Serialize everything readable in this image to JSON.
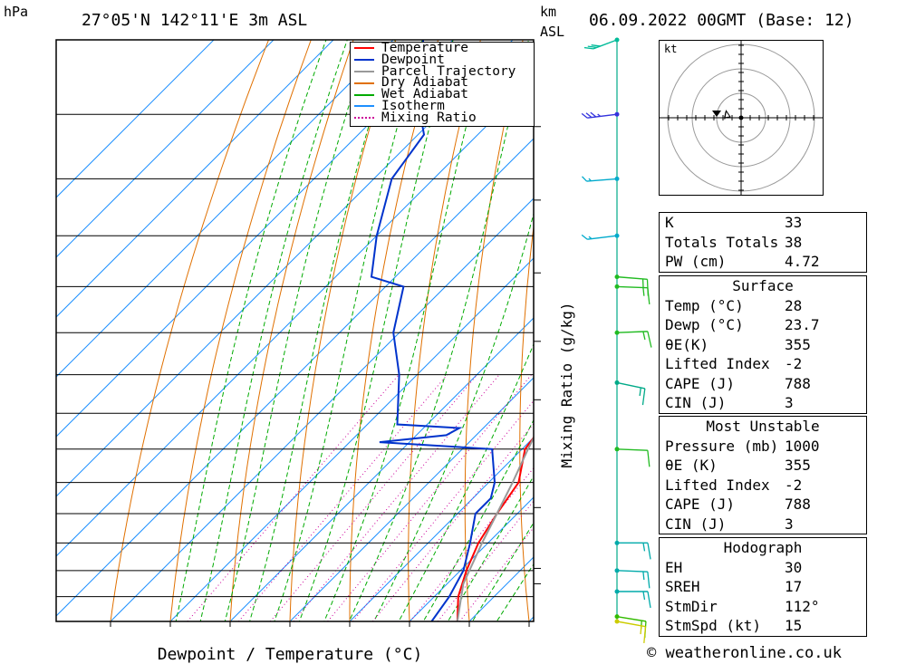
{
  "header": {
    "pressure_unit": "hPa",
    "location": "27°05'N  142°11'E  3m  ASL",
    "km_label": "km",
    "asl_label": "ASL",
    "datetime": "06.09.2022  00GMT  (Base: 12)"
  },
  "footer": {
    "copyright": "© weatheronline.co.uk"
  },
  "legend": {
    "items": [
      {
        "label": "Temperature",
        "color": "#ff0000",
        "style": "solid"
      },
      {
        "label": "Dewpoint",
        "color": "#0033cc",
        "style": "solid"
      },
      {
        "label": "Parcel Trajectory",
        "color": "#999999",
        "style": "solid"
      },
      {
        "label": "Dry Adiabat",
        "color": "#e07000",
        "style": "solid"
      },
      {
        "label": "Wet Adiabat",
        "color": "#00aa00",
        "style": "solid"
      },
      {
        "label": "Isotherm",
        "color": "#1e90ff",
        "style": "solid"
      },
      {
        "label": "Mixing Ratio",
        "color": "#cc0099",
        "style": "dotted"
      }
    ]
  },
  "chart_data": {
    "type": "line",
    "subtype": "skew-T log-P diagram",
    "xlabel": "Dewpoint / Temperature (°C)",
    "ylabel": "hPa",
    "xlim": [
      -40,
      40
    ],
    "ylim": [
      1000,
      300
    ],
    "x_ticks": [
      -30,
      -20,
      -10,
      0,
      10,
      20,
      30,
      40
    ],
    "pressure_levels": [
      300,
      350,
      400,
      450,
      500,
      550,
      600,
      650,
      700,
      750,
      800,
      850,
      900,
      950,
      1000
    ],
    "km_ticks": [
      {
        "km": "8",
        "p": 359
      },
      {
        "km": "7",
        "p": 418
      },
      {
        "km": "6",
        "p": 486
      },
      {
        "km": "5",
        "p": 560
      },
      {
        "km": "4",
        "p": 632
      },
      {
        "km": "3",
        "p": 700
      },
      {
        "km": "2",
        "p": 790
      },
      {
        "km": "1",
        "p": 896
      },
      {
        "km": "LCL",
        "p": 925
      }
    ],
    "mixing_ratio_axis_label": "Mixing Ratio (g/kg)",
    "mixing_ratio_labels": [
      "1",
      "2",
      "3",
      "4",
      "6",
      "8",
      "10",
      "15",
      "20",
      "25"
    ],
    "mixing_ratio_values": [
      1,
      2,
      3,
      4,
      6,
      8,
      10,
      15,
      20,
      25
    ],
    "series": [
      {
        "name": "Temperature",
        "color": "#ff0000",
        "points": [
          [
            1000,
            28
          ],
          [
            950,
            24
          ],
          [
            900,
            21
          ],
          [
            850,
            18.4
          ],
          [
            800,
            16.6
          ],
          [
            750,
            15
          ],
          [
            700,
            10.5
          ],
          [
            650,
            9
          ],
          [
            600,
            5
          ],
          [
            550,
            1
          ],
          [
            500,
            -4
          ],
          [
            450,
            -9.5
          ],
          [
            400,
            -15
          ],
          [
            380,
            -19
          ],
          [
            350,
            -24.5
          ]
        ]
      },
      {
        "name": "Dewpoint",
        "color": "#0033cc",
        "points": [
          [
            1000,
            23.7
          ],
          [
            950,
            22.5
          ],
          [
            900,
            20.5
          ],
          [
            850,
            17
          ],
          [
            800,
            13
          ],
          [
            775,
            13
          ],
          [
            750,
            11
          ],
          [
            700,
            5
          ],
          [
            690,
            -15
          ],
          [
            680,
            -5
          ],
          [
            670,
            -4
          ],
          [
            665,
            -15
          ],
          [
            600,
            -23
          ],
          [
            550,
            -31
          ],
          [
            500,
            -37
          ],
          [
            490,
            -44
          ],
          [
            450,
            -50
          ],
          [
            400,
            -57
          ],
          [
            365,
            -59
          ],
          [
            350,
            -63
          ],
          [
            300,
            -75
          ]
        ]
      },
      {
        "name": "Parcel Trajectory",
        "color": "#999999",
        "points": [
          [
            1000,
            28
          ],
          [
            925,
            22.7
          ],
          [
            900,
            21.5
          ],
          [
            850,
            19
          ],
          [
            800,
            16.6
          ],
          [
            750,
            14
          ],
          [
            700,
            11
          ],
          [
            650,
            8
          ],
          [
            600,
            4.6
          ],
          [
            550,
            1
          ],
          [
            500,
            -3
          ],
          [
            450,
            -7
          ],
          [
            400,
            -12
          ],
          [
            370,
            -16
          ]
        ]
      }
    ]
  },
  "hodograph": {
    "unit_label": "kt",
    "ring_labels": [
      "15",
      "30",
      "45"
    ]
  },
  "wind_barbs": [
    {
      "p": 300,
      "dir_deg": 230,
      "speed_kt": 30,
      "color": "#00bb99"
    },
    {
      "p": 350,
      "dir_deg": 255,
      "speed_kt": 35,
      "color": "#3333dd"
    },
    {
      "p": 400,
      "dir_deg": 260,
      "speed_kt": 15,
      "color": "#00aacc"
    },
    {
      "p": 450,
      "dir_deg": 255,
      "speed_kt": 15,
      "color": "#00aacc"
    },
    {
      "p": 490,
      "dir_deg": 100,
      "speed_kt": 15,
      "color": "#22bb22"
    },
    {
      "p": 500,
      "dir_deg": 95,
      "speed_kt": 15,
      "color": "#22bb22"
    },
    {
      "p": 550,
      "dir_deg": 85,
      "speed_kt": 15,
      "color": "#22bb22"
    },
    {
      "p": 610,
      "dir_deg": 115,
      "speed_kt": 15,
      "color": "#00aa88"
    },
    {
      "p": 700,
      "dir_deg": 95,
      "speed_kt": 10,
      "color": "#22bb22"
    },
    {
      "p": 850,
      "dir_deg": 90,
      "speed_kt": 15,
      "color": "#00aaaa"
    },
    {
      "p": 900,
      "dir_deg": 95,
      "speed_kt": 15,
      "color": "#00aaaa"
    },
    {
      "p": 940,
      "dir_deg": 90,
      "speed_kt": 15,
      "color": "#00aaaa"
    },
    {
      "p": 990,
      "dir_deg": 110,
      "speed_kt": 15,
      "color": "#33bb00"
    },
    {
      "p": 1000,
      "dir_deg": 112,
      "speed_kt": 15,
      "color": "#cccc00"
    }
  ],
  "indices": {
    "top": [
      {
        "label": "K",
        "value": "33"
      },
      {
        "label": "Totals Totals",
        "value": "38"
      },
      {
        "label": "PW (cm)",
        "value": "4.72"
      }
    ],
    "surface": {
      "title": "Surface",
      "rows": [
        {
          "label": "Temp (°C)",
          "value": "28"
        },
        {
          "label": "Dewp (°C)",
          "value": "23.7"
        },
        {
          "label": "θE(K)",
          "value": "355"
        },
        {
          "label": "Lifted Index",
          "value": "-2"
        },
        {
          "label": "CAPE (J)",
          "value": "788"
        },
        {
          "label": "CIN (J)",
          "value": "3"
        }
      ]
    },
    "most_unstable": {
      "title": "Most Unstable",
      "rows": [
        {
          "label": "Pressure (mb)",
          "value": "1000"
        },
        {
          "label": "θE (K)",
          "value": "355"
        },
        {
          "label": "Lifted Index",
          "value": "-2"
        },
        {
          "label": "CAPE (J)",
          "value": "788"
        },
        {
          "label": "CIN (J)",
          "value": "3"
        }
      ]
    },
    "hodograph": {
      "title": "Hodograph",
      "rows": [
        {
          "label": "EH",
          "value": "30"
        },
        {
          "label": "SREH",
          "value": "17"
        },
        {
          "label": "StmDir",
          "value": "112°"
        },
        {
          "label": "StmSpd (kt)",
          "value": "15"
        }
      ]
    }
  }
}
